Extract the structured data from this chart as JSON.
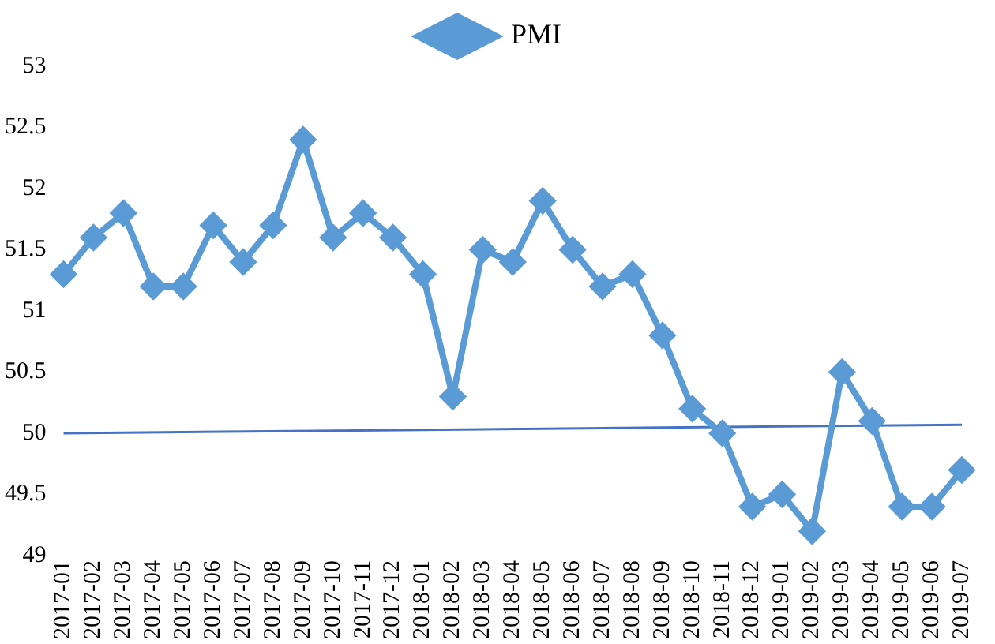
{
  "chart_data": {
    "type": "line",
    "categories": [
      "2017-01",
      "2017-02",
      "2017-03",
      "2017-04",
      "2017-05",
      "2017-06",
      "2017-07",
      "2017-08",
      "2017-09",
      "2017-10",
      "2017-11",
      "2017-12",
      "2018-01",
      "2018-02",
      "2018-03",
      "2018-04",
      "2018-05",
      "2018-06",
      "2018-07",
      "2018-08",
      "2018-09",
      "2018-10",
      "2018-11",
      "2018-12",
      "2019-01",
      "2019-02",
      "2019-03",
      "2019-04",
      "2019-05",
      "2019-06",
      "2019-07"
    ],
    "series": [
      {
        "name": "PMI",
        "color": "#5b9bd5",
        "marker": "diamond",
        "values": [
          51.3,
          51.6,
          51.8,
          51.2,
          51.2,
          51.7,
          51.4,
          51.7,
          52.4,
          51.6,
          51.8,
          51.6,
          51.3,
          50.3,
          51.5,
          51.4,
          51.9,
          51.5,
          51.2,
          51.3,
          50.8,
          50.2,
          50.0,
          49.4,
          49.5,
          49.2,
          50.5,
          50.1,
          49.4,
          49.4,
          49.7
        ]
      },
      {
        "type": "line",
        "color": "#4472c4",
        "marker": "none",
        "values": [
          50.0,
          null,
          null,
          null,
          null,
          null,
          null,
          null,
          null,
          null,
          null,
          null,
          null,
          null,
          null,
          null,
          null,
          null,
          null,
          null,
          null,
          null,
          null,
          null,
          null,
          null,
          null,
          null,
          null,
          null,
          50.07
        ]
      }
    ],
    "ylim": [
      49,
      53
    ],
    "yticks": [
      49,
      49.5,
      50,
      50.5,
      51,
      51.5,
      52,
      52.5,
      53
    ],
    "grid": false,
    "legend": "top",
    "line_style": "solid"
  }
}
